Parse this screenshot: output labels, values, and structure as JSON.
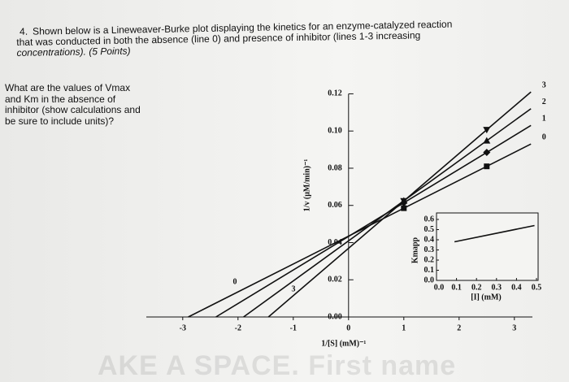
{
  "question": {
    "number": "4.",
    "lines": [
      "Shown below is a Lineweaver-Burke plot displaying the kinetics for an enzyme-catalyzed reaction",
      "that was conducted in both the absence (line 0) and presence of inhibitor (lines 1-3 increasing",
      "concentrations). (5 Points)"
    ],
    "prompt": [
      "What are the values of Vmax",
      "and Km in the absence of",
      "inhibitor (show calculations and",
      "be sure to include units)?"
    ]
  },
  "watermark": [
    "AKE A SPACE. First name"
  ],
  "chart_data": [
    {
      "type": "line",
      "x_label": "1/[S] (mM)⁻¹",
      "y_label": "1/v (μM/min)⁻¹",
      "xlim": [
        -3.6,
        3.4
      ],
      "xticks": [
        -3,
        -2,
        -1,
        0,
        1,
        2,
        3
      ],
      "ylim": [
        0,
        0.125
      ],
      "yticks": [
        {
          "value": 0,
          "label": "0.00"
        },
        0.02,
        0.04,
        0.06,
        0.08,
        {
          "value": 0.1,
          "label": "0.10"
        },
        0.12
      ],
      "series": [
        {
          "name": "0",
          "color": "#111111",
          "marker": "square",
          "x": [
            -2.9,
            1,
            2.5,
            3.3
          ],
          "values": [
            0,
            0.0585,
            0.081,
            0.093
          ]
        },
        {
          "name": "1",
          "color": "#111111",
          "marker": "diamond",
          "x": [
            -2.4,
            1,
            2.5,
            3.3
          ],
          "values": [
            0,
            0.0614,
            0.0885,
            0.103
          ]
        },
        {
          "name": "2",
          "color": "#111111",
          "marker": "triangle-up",
          "x": [
            -1.9,
            1,
            2.5,
            3.3
          ],
          "values": [
            0,
            0.0625,
            0.0948,
            0.112
          ]
        },
        {
          "name": "3",
          "color": "#111111",
          "marker": "triangle-down",
          "x": [
            -1.45,
            1,
            2.5,
            3.3
          ],
          "values": [
            0,
            0.0624,
            0.1007,
            0.121
          ]
        }
      ]
    },
    {
      "type": "line",
      "x_label": "[I] (mM)",
      "y_label": "Kmapp",
      "xlim": [
        0,
        0.5
      ],
      "xticks": [
        {
          "value": 0,
          "label": "0.0"
        },
        0.1,
        0.2,
        0.3,
        0.4,
        0.5
      ],
      "ylim": [
        0,
        0.6
      ],
      "yticks": [
        {
          "value": 0,
          "label": "0.0"
        },
        0.1,
        0.2,
        0.3,
        0.4,
        0.5,
        0.6
      ],
      "series": [
        {
          "color": "#111111",
          "x": [
            0.09,
            0.49
          ],
          "values": [
            0.38,
            0.54
          ]
        }
      ]
    }
  ]
}
